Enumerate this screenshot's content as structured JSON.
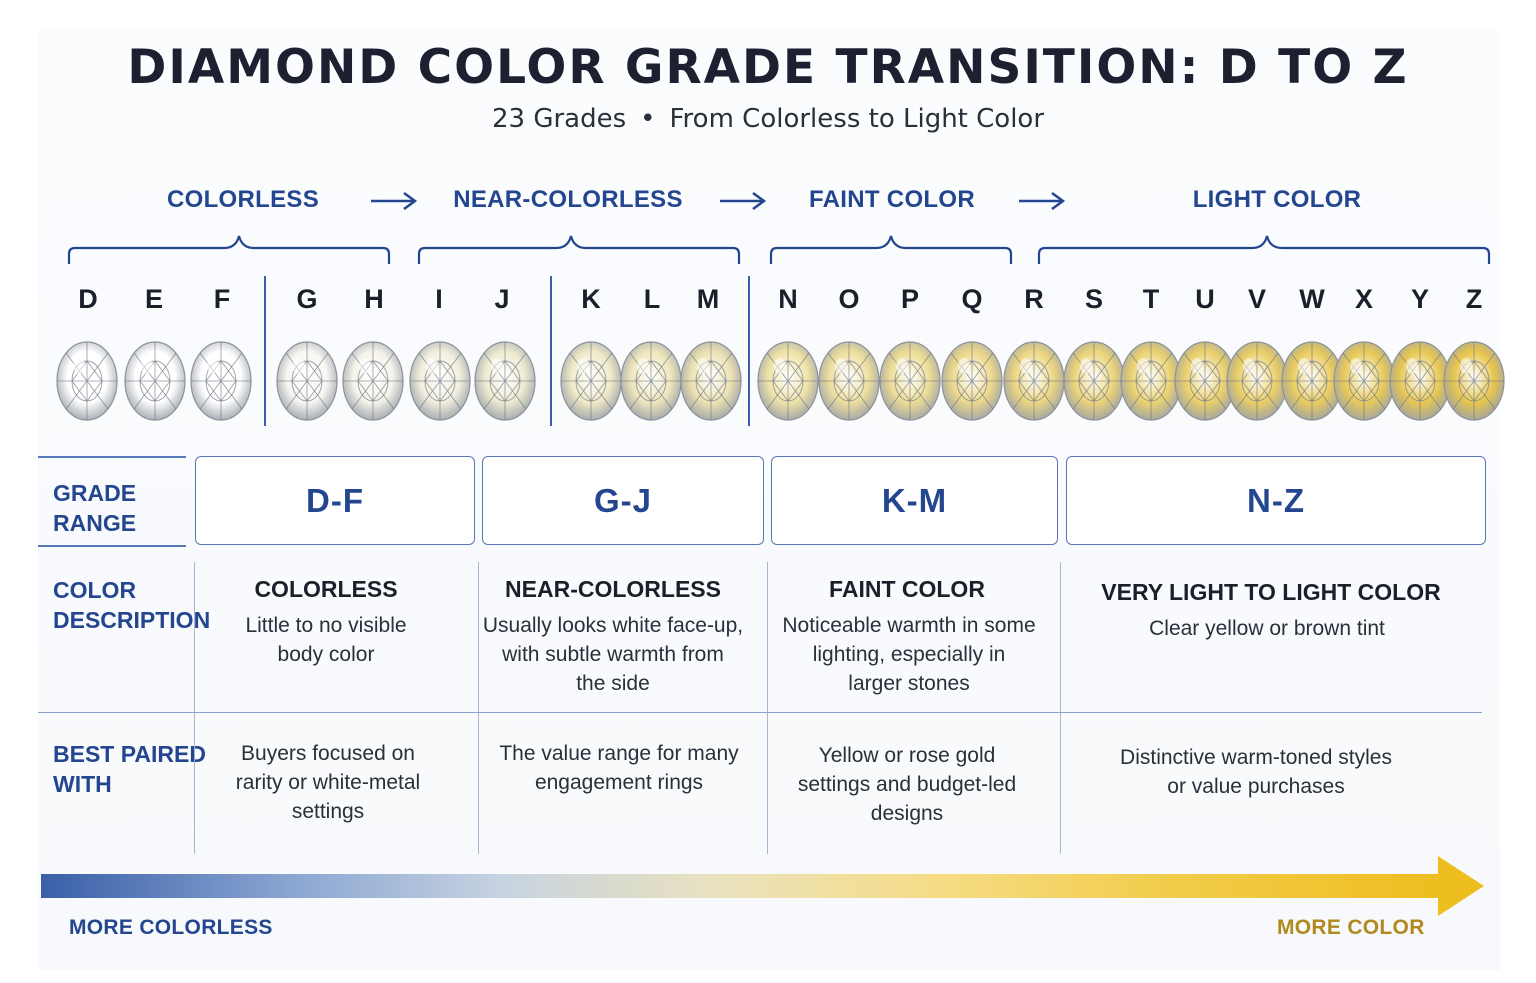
{
  "title": "DIAMOND COLOR GRADE TRANSITION: D TO Z",
  "subtitle": {
    "left": "23 Grades",
    "separator": "•",
    "right": "From Colorless to Light Color"
  },
  "categories": [
    "COLORLESS",
    "NEAR-COLORLESS",
    "FAINT COLOR",
    "LIGHT COLOR"
  ],
  "grades": [
    "D",
    "E",
    "F",
    "G",
    "H",
    "I",
    "J",
    "K",
    "L",
    "M",
    "N",
    "O",
    "P",
    "Q",
    "R",
    "S",
    "T",
    "U",
    "V",
    "W",
    "X",
    "Y",
    "Z"
  ],
  "stone_colors": [
    "#ffffff",
    "#ffffff",
    "#ffffff",
    "#f8f7f2",
    "#f5f3ea",
    "#f2efdd",
    "#eeebd2",
    "#f0eac8",
    "#eee6bc",
    "#ece2b2",
    "#efe3a8",
    "#eedf9e",
    "#eddc94",
    "#ecd88a",
    "#ecd680",
    "#ecd478",
    "#ebd270",
    "#ebd06a",
    "#eace64",
    "#eacc5e",
    "#e9ca58",
    "#e8c852",
    "#e8c64c"
  ],
  "rows": {
    "grade_range": "GRADE\nRANGE",
    "color_description": "COLOR\nDESCRIPTION",
    "best_paired": "BEST PAIRED\nWITH"
  },
  "columns": [
    {
      "range": "D-F",
      "desc_title": "COLORLESS",
      "desc_text": "Little to no visible\nbody color",
      "paired": "Buyers focused on\nrarity or white-metal\nsettings"
    },
    {
      "range": "G-J",
      "desc_title": "NEAR-COLORLESS",
      "desc_text": "Usually looks white face-up,\nwith subtle warmth from\nthe side",
      "paired": "The value range for many\nengagement rings"
    },
    {
      "range": "K-M",
      "desc_title": "FAINT COLOR",
      "desc_text": "Noticeable warmth in some\nlighting, especially in\nlarger stones",
      "paired": "Yellow or rose gold\nsettings and budget-led\ndesigns"
    },
    {
      "range": "N-Z",
      "desc_title": "VERY LIGHT TO LIGHT COLOR",
      "desc_text": "Clear yellow or brown tint",
      "paired": "Distinctive warm-toned styles\nor value purchases"
    }
  ],
  "scale": {
    "left_label": "MORE COLORLESS",
    "right_label": "MORE COLOR"
  },
  "colors": {
    "accent_blue": "#23468f",
    "gold": "#b08a1e"
  }
}
